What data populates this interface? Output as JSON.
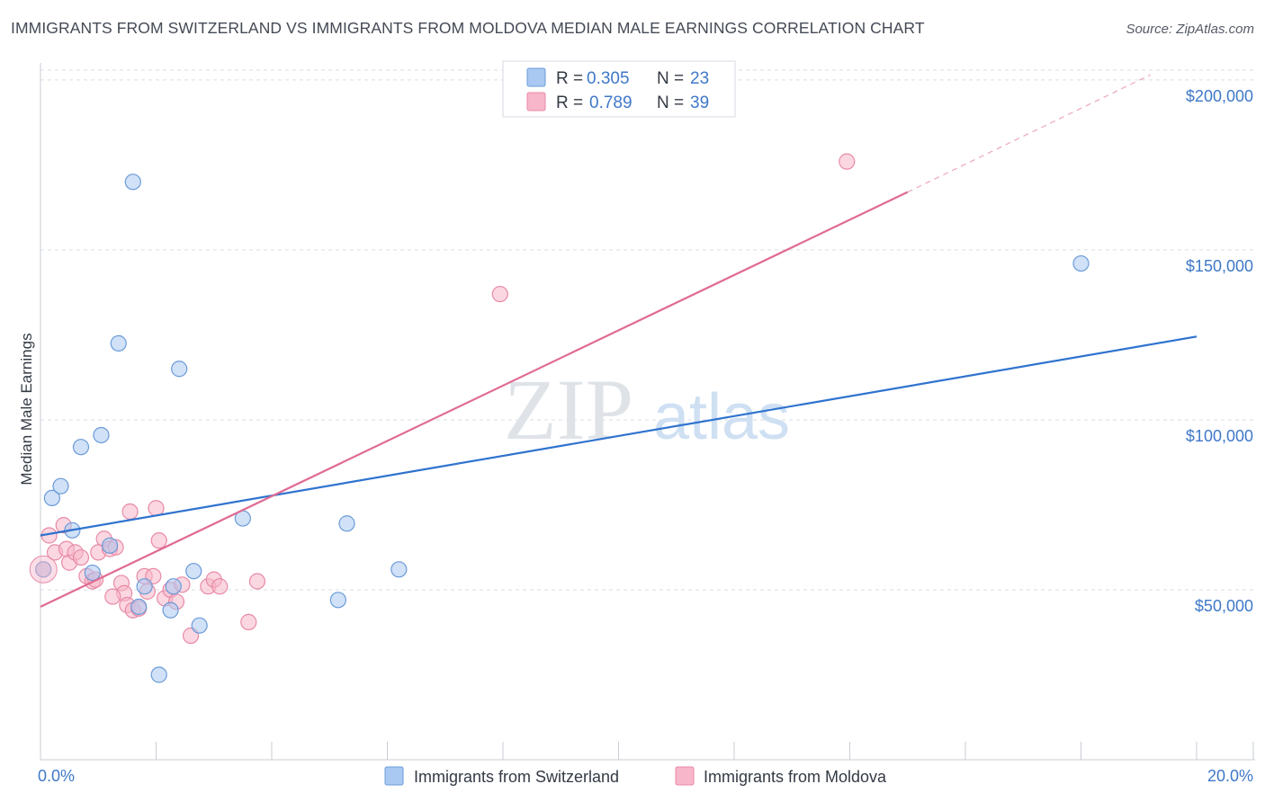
{
  "title": "IMMIGRANTS FROM SWITZERLAND VS IMMIGRANTS FROM MOLDOVA MEDIAN MALE EARNINGS CORRELATION CHART",
  "source": "Source: ZipAtlas.com",
  "watermark": {
    "zip": "ZIP",
    "atlas": "atlas"
  },
  "colors": {
    "switzerland_fill": "#a9c8f2",
    "switzerland_stroke": "#6b9bd8",
    "switzerland_line": "#2f73cf",
    "moldova_fill": "#f7b6c9",
    "moldova_stroke": "#e88aa6",
    "moldova_line": "#e06b93",
    "grid": "#d9dde3",
    "axis_text": "#3f78c8"
  },
  "legend": {
    "r_label": "R =",
    "n_label": "N =",
    "rows": [
      {
        "r": "0.305",
        "n": "23"
      },
      {
        "r": "0.789",
        "n": "39"
      }
    ]
  },
  "chart_data": {
    "type": "scatter",
    "xlabel": "",
    "ylabel": "Median Male Earnings",
    "xlim": [
      0,
      20
    ],
    "ylim": [
      0,
      205000
    ],
    "x_tick_labels": [
      "0.0%",
      "20.0%"
    ],
    "y_ticks": [
      {
        "value": 50000,
        "label": "$50,000"
      },
      {
        "value": 100000,
        "label": "$100,000"
      },
      {
        "value": 150000,
        "label": "$150,000"
      },
      {
        "value": 200000,
        "label": "$200,000"
      }
    ],
    "series": [
      {
        "name": "Immigrants from Switzerland",
        "r": 0.305,
        "n": 23,
        "points": [
          [
            0.05,
            56000
          ],
          [
            0.2,
            77000
          ],
          [
            0.35,
            80500
          ],
          [
            0.55,
            67500
          ],
          [
            0.7,
            92000
          ],
          [
            0.9,
            55000
          ],
          [
            1.05,
            95500
          ],
          [
            1.2,
            63000
          ],
          [
            1.35,
            122500
          ],
          [
            1.6,
            170000
          ],
          [
            1.7,
            45000
          ],
          [
            1.8,
            51000
          ],
          [
            2.05,
            25000
          ],
          [
            2.3,
            51000
          ],
          [
            2.4,
            115000
          ],
          [
            2.65,
            55500
          ],
          [
            2.75,
            39500
          ],
          [
            3.5,
            71000
          ],
          [
            5.15,
            47000
          ],
          [
            5.3,
            69500
          ],
          [
            6.2,
            56000
          ],
          [
            18.0,
            146000
          ],
          [
            2.25,
            44000
          ]
        ],
        "trend": {
          "x": [
            0,
            20
          ],
          "y": [
            66000,
            124500
          ]
        }
      },
      {
        "name": "Immigrants from Moldova",
        "r": 0.789,
        "n": 39,
        "points": [
          [
            0.05,
            56000
          ],
          [
            0.15,
            66000
          ],
          [
            0.25,
            61000
          ],
          [
            0.4,
            69000
          ],
          [
            0.45,
            62000
          ],
          [
            0.5,
            58000
          ],
          [
            0.6,
            61000
          ],
          [
            0.7,
            59500
          ],
          [
            0.8,
            54000
          ],
          [
            0.9,
            52500
          ],
          [
            0.95,
            53000
          ],
          [
            1.0,
            61000
          ],
          [
            1.1,
            65000
          ],
          [
            1.2,
            62000
          ],
          [
            1.3,
            62500
          ],
          [
            1.4,
            52000
          ],
          [
            1.45,
            49000
          ],
          [
            1.5,
            45500
          ],
          [
            1.55,
            73000
          ],
          [
            1.6,
            44000
          ],
          [
            1.7,
            44500
          ],
          [
            1.8,
            54000
          ],
          [
            1.85,
            49500
          ],
          [
            1.95,
            54000
          ],
          [
            2.0,
            74000
          ],
          [
            2.05,
            64500
          ],
          [
            2.15,
            47500
          ],
          [
            2.25,
            50000
          ],
          [
            2.35,
            46500
          ],
          [
            2.45,
            51500
          ],
          [
            2.6,
            36500
          ],
          [
            2.9,
            51000
          ],
          [
            3.0,
            53000
          ],
          [
            3.1,
            51000
          ],
          [
            3.6,
            40500
          ],
          [
            3.75,
            52500
          ],
          [
            7.95,
            137000
          ],
          [
            13.95,
            176000
          ],
          [
            1.25,
            48000
          ]
        ],
        "trend": {
          "x": [
            0,
            15
          ],
          "y": [
            45000,
            167000
          ]
        },
        "trend_dashed": {
          "x": [
            15,
            19.2
          ],
          "y": [
            167000,
            201500
          ]
        }
      }
    ]
  },
  "bottom_legend": [
    {
      "label": "Immigrants from Switzerland"
    },
    {
      "label": "Immigrants from Moldova"
    }
  ]
}
